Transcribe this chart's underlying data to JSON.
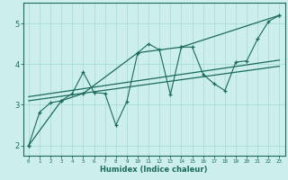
{
  "xlabel": "Humidex (Indice chaleur)",
  "bg_color": "#cceeed",
  "grid_color": "#aaddda",
  "line_color": "#1a6b5a",
  "xlim": [
    -0.5,
    23.5
  ],
  "ylim": [
    1.75,
    5.5
  ],
  "yticks": [
    2,
    3,
    4,
    5
  ],
  "xticks": [
    0,
    1,
    2,
    3,
    4,
    5,
    6,
    7,
    8,
    9,
    10,
    11,
    12,
    13,
    14,
    15,
    16,
    17,
    18,
    19,
    20,
    21,
    22,
    23
  ],
  "series1_x": [
    0,
    1,
    2,
    3,
    4,
    5,
    6,
    7,
    8,
    9,
    10,
    11,
    12,
    13,
    14,
    15,
    16,
    17,
    18,
    19,
    20,
    21,
    22,
    23
  ],
  "series1_y": [
    2.0,
    2.82,
    3.05,
    3.1,
    3.28,
    3.8,
    3.3,
    3.28,
    2.5,
    3.08,
    4.28,
    4.5,
    4.35,
    3.25,
    4.42,
    4.42,
    3.75,
    3.52,
    3.35,
    4.05,
    4.08,
    4.62,
    5.05,
    5.2
  ],
  "series2_x": [
    0,
    3,
    5,
    10,
    14,
    23
  ],
  "series2_y": [
    2.0,
    3.1,
    3.28,
    4.28,
    4.42,
    5.2
  ],
  "series3_x": [
    0,
    23
  ],
  "series3_y": [
    3.2,
    4.1
  ],
  "series4_x": [
    0,
    23
  ],
  "series4_y": [
    3.1,
    3.95
  ],
  "figsize": [
    3.2,
    2.0
  ],
  "dpi": 100
}
